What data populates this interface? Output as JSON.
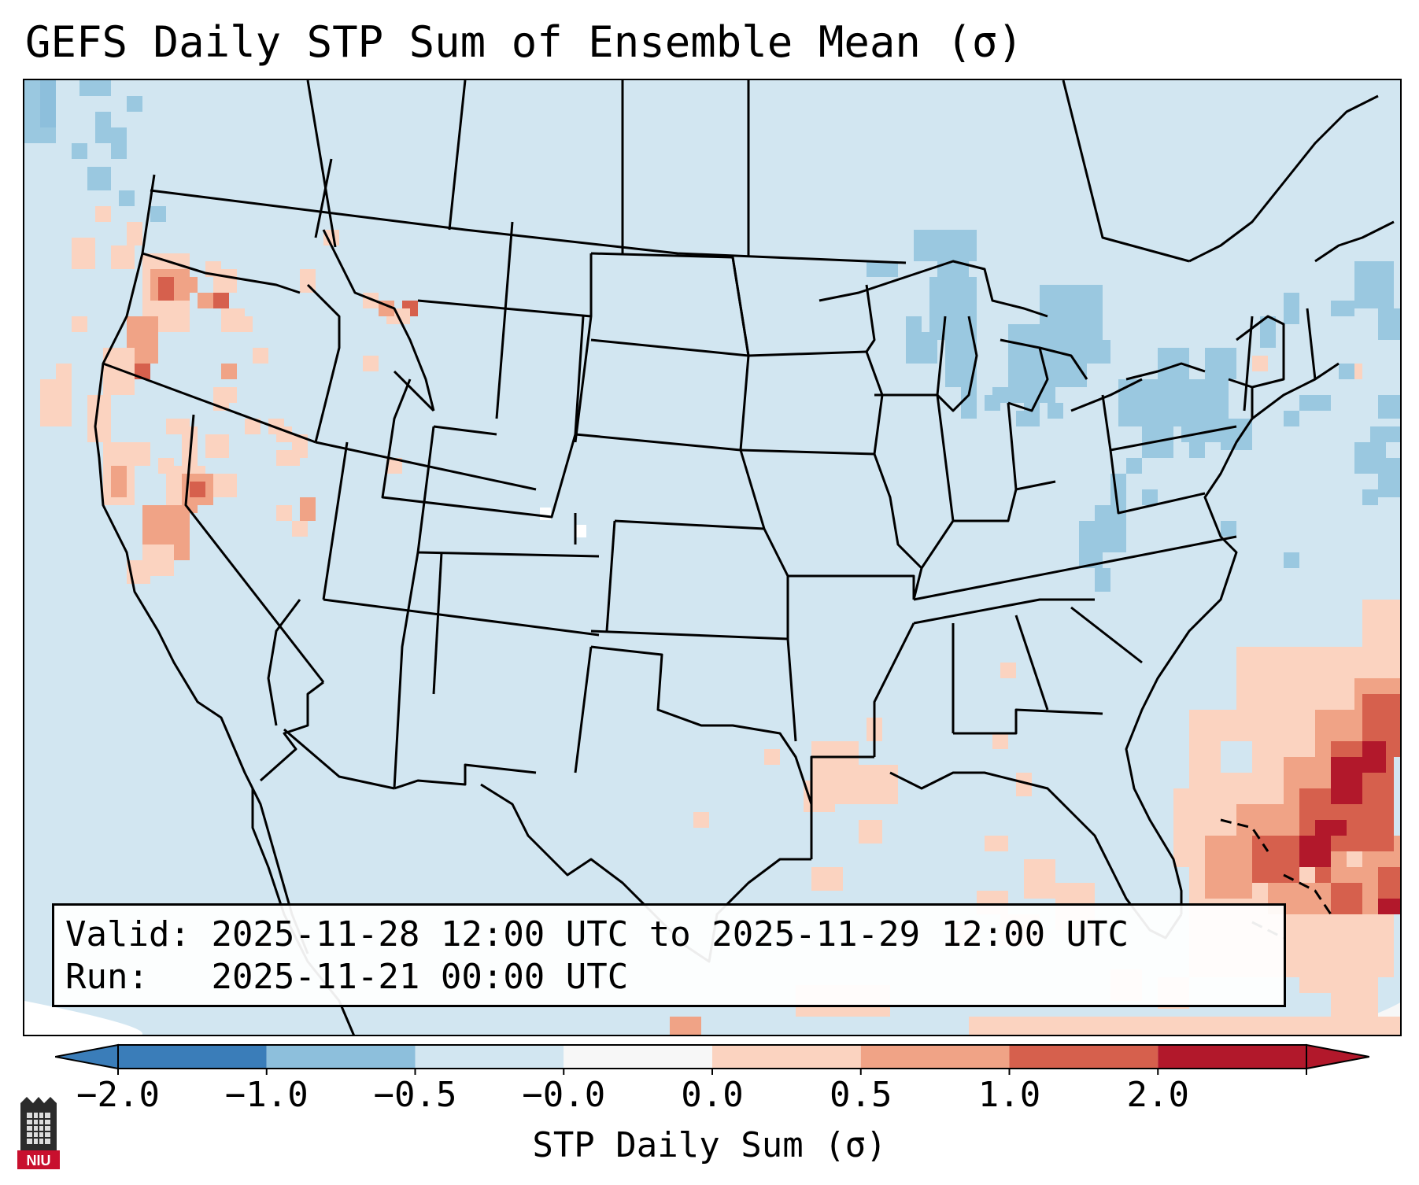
{
  "title": "GEFS Daily STP Sum of Ensemble Mean (σ)",
  "info": {
    "valid_label": "Valid:",
    "valid_value": "2025-11-28 12:00 UTC to 2025-11-29 12:00 UTC",
    "run_label": "Run:",
    "run_value": "2025-11-21 00:00 UTC"
  },
  "colorbar": {
    "label": "STP Daily Sum (σ)",
    "ticks": [
      "−2.0",
      "−1.0",
      "−0.5",
      "−0.0",
      "0.0",
      "0.5",
      "1.0",
      "2.0"
    ],
    "colors": [
      "#3a7db9",
      "#8dbfdc",
      "#d2e6f1",
      "#f7f7f7",
      "#fbd3c0",
      "#f0a386",
      "#d6604d",
      "#b2182b"
    ],
    "under_color": "#3a7db9",
    "over_color": "#b2182b"
  },
  "logo": {
    "text": "NIU",
    "icon": "niu-logo-icon"
  },
  "colors": {
    "background": "#d2e6f1",
    "light_blue": "#8dbfdc",
    "mid_blue": "#9ac8e0",
    "light_red": "#fbd3c0",
    "mid_red": "#f0a386",
    "red": "#d6604d",
    "dark_red": "#b2182b"
  }
}
